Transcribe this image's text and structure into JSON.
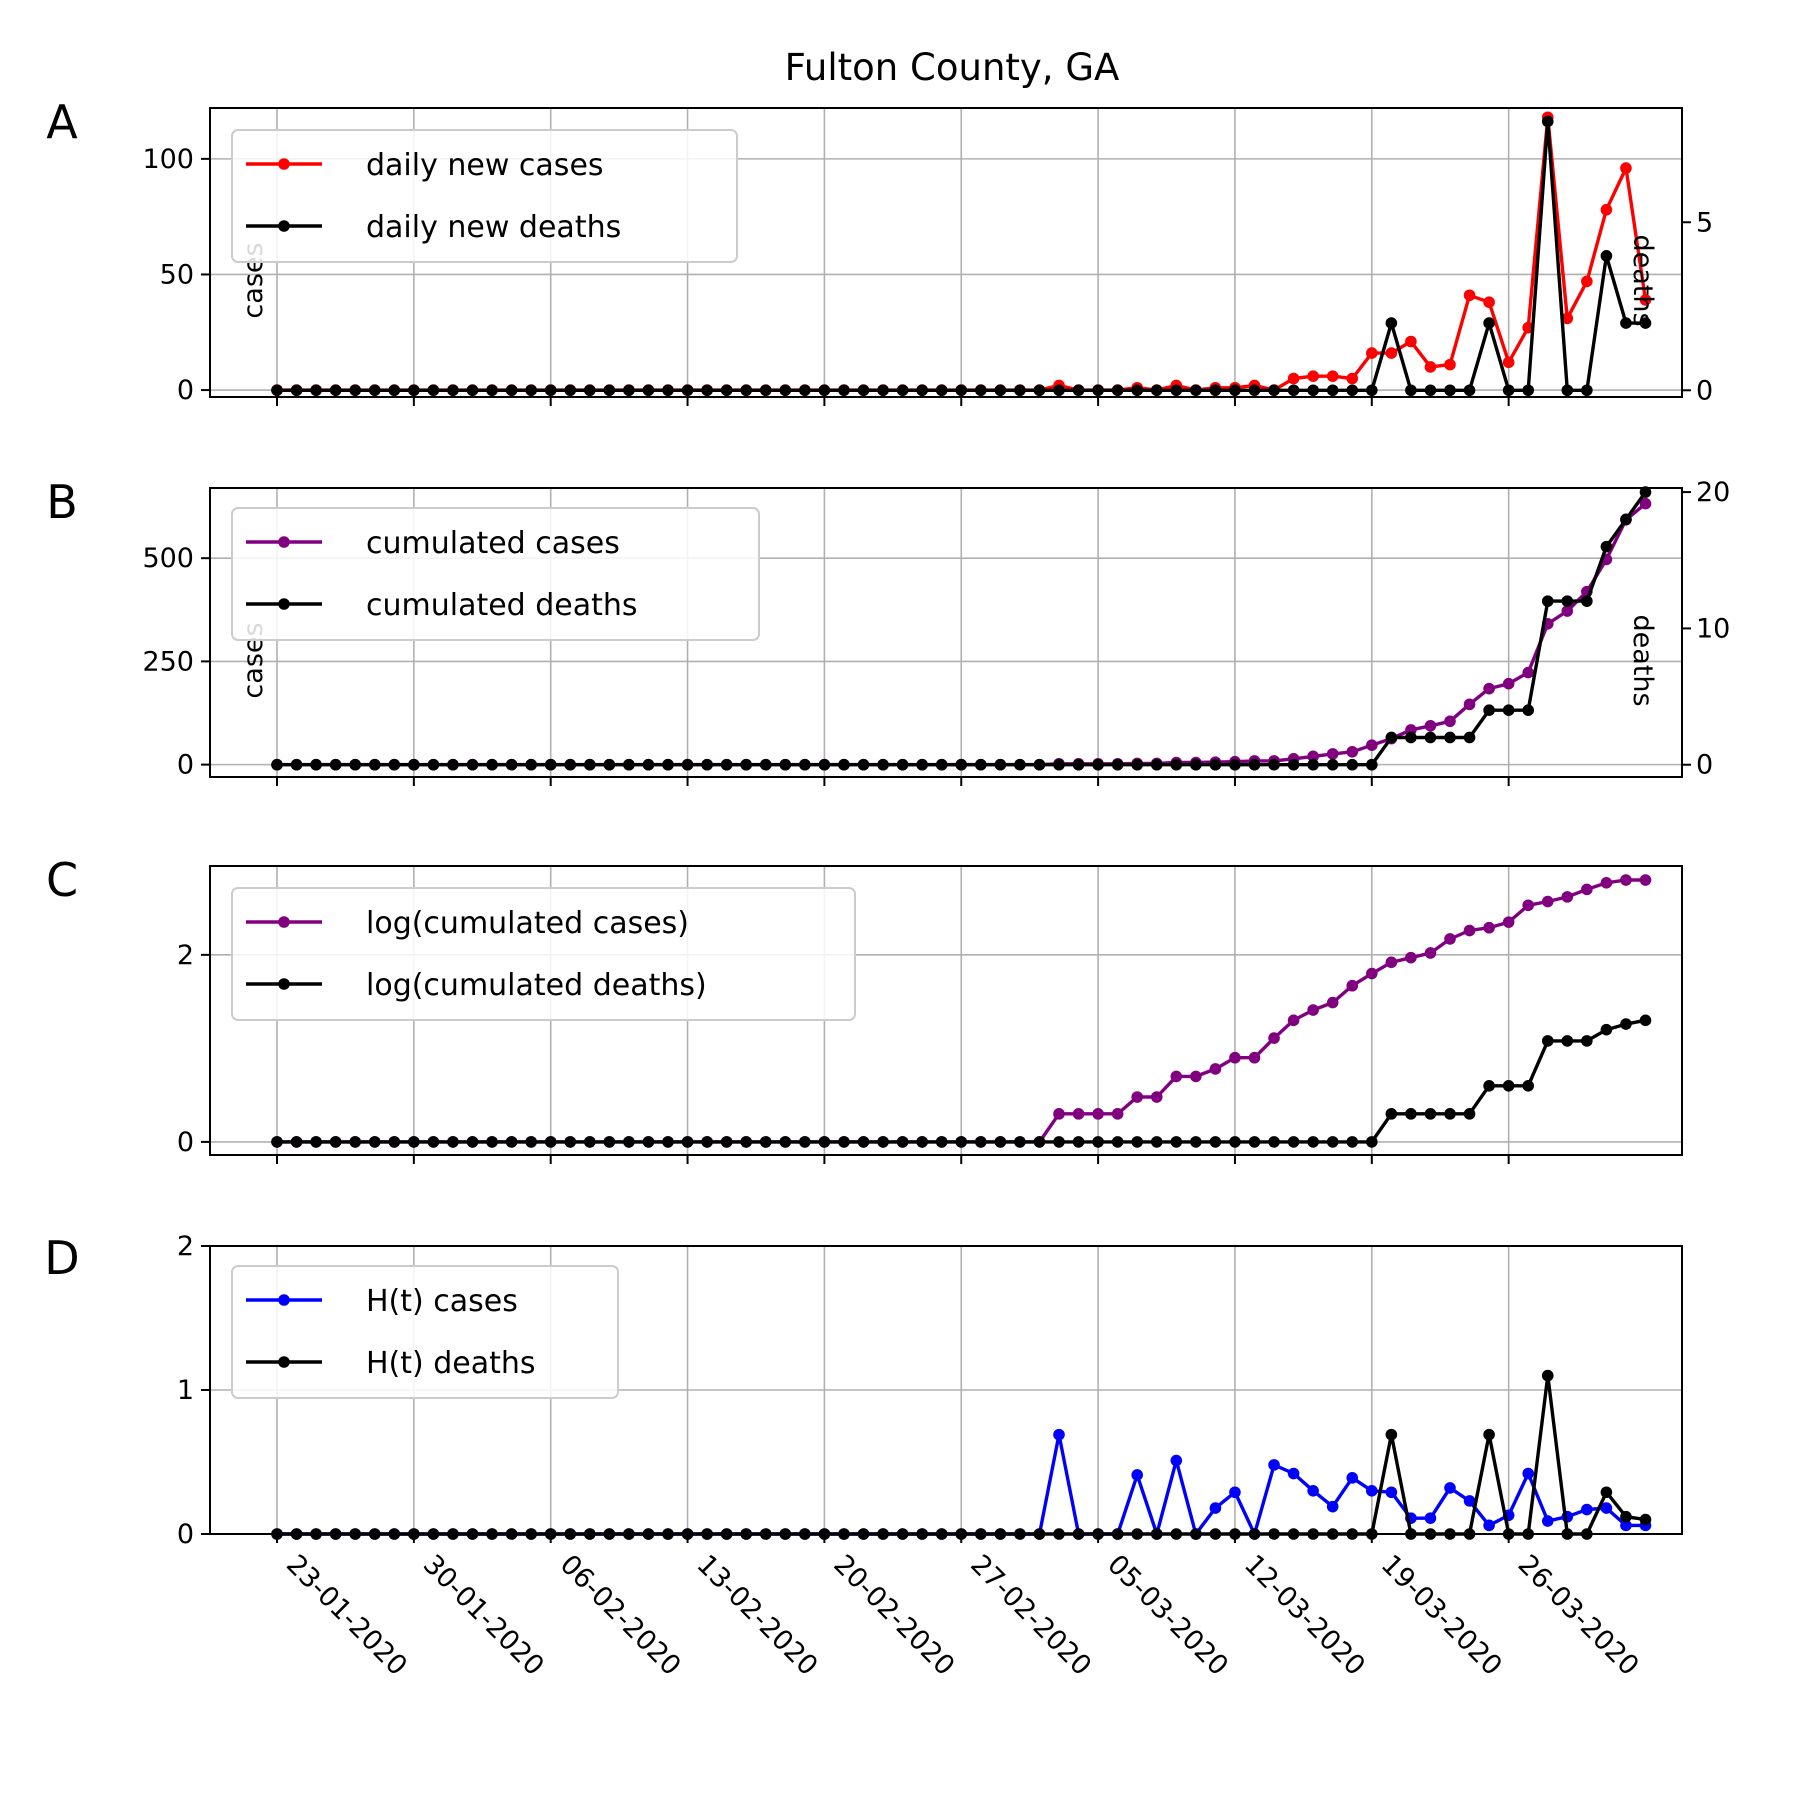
{
  "title": "Fulton County, GA",
  "x_tick_labels": [
    "23-01-2020",
    "30-01-2020",
    "06-02-2020",
    "13-02-2020",
    "20-02-2020",
    "27-02-2020",
    "05-03-2020",
    "12-03-2020",
    "19-03-2020",
    "26-03-2020"
  ],
  "chart_data": [
    {
      "panel": "A",
      "type": "line",
      "x": {
        "start": "2020-01-23",
        "end": "2020-04-01",
        "unit": "day"
      },
      "ylabel": "cases",
      "ylabel_right": "deaths",
      "ylim": [
        -3,
        122
      ],
      "yticks": [
        0,
        50,
        100
      ],
      "ylim_right": [
        -0.2,
        8.4
      ],
      "yticks_right": [
        0,
        5
      ],
      "grid": true,
      "legend": "upper-left",
      "series": [
        {
          "name": "daily new cases",
          "axis": "left",
          "color": "#ff0000",
          "values": [
            0,
            0,
            0,
            0,
            0,
            0,
            0,
            0,
            0,
            0,
            0,
            0,
            0,
            0,
            0,
            0,
            0,
            0,
            0,
            0,
            0,
            0,
            0,
            0,
            0,
            0,
            0,
            0,
            0,
            0,
            0,
            0,
            0,
            0,
            0,
            0,
            0,
            0,
            0,
            0,
            2,
            0,
            0,
            0,
            1,
            0,
            2,
            0,
            1,
            1,
            2,
            0,
            5,
            6,
            6,
            5,
            16,
            16,
            21,
            10,
            11,
            41,
            38,
            12,
            27,
            118,
            31,
            47,
            78,
            96,
            39
          ]
        },
        {
          "name": "daily new deaths",
          "axis": "right",
          "color": "#000000",
          "values": [
            0,
            0,
            0,
            0,
            0,
            0,
            0,
            0,
            0,
            0,
            0,
            0,
            0,
            0,
            0,
            0,
            0,
            0,
            0,
            0,
            0,
            0,
            0,
            0,
            0,
            0,
            0,
            0,
            0,
            0,
            0,
            0,
            0,
            0,
            0,
            0,
            0,
            0,
            0,
            0,
            0,
            0,
            0,
            0,
            0,
            0,
            0,
            0,
            0,
            0,
            0,
            0,
            0,
            0,
            0,
            0,
            0,
            2,
            0,
            0,
            0,
            0,
            2,
            0,
            0,
            8,
            0,
            0,
            4,
            2,
            2
          ]
        }
      ]
    },
    {
      "panel": "B",
      "type": "line",
      "x": {
        "start": "2020-01-23",
        "end": "2020-04-01",
        "unit": "day"
      },
      "ylabel": "cases",
      "ylabel_right": "deaths",
      "ylim": [
        -30,
        670
      ],
      "yticks": [
        0,
        250,
        500
      ],
      "ylim_right": [
        -0.9,
        20.3
      ],
      "yticks_right": [
        0,
        10,
        20
      ],
      "grid": true,
      "legend": "upper-left",
      "series": [
        {
          "name": "cumulated cases",
          "axis": "left",
          "color": "#800080",
          "values": [
            0,
            0,
            0,
            0,
            0,
            0,
            0,
            0,
            0,
            0,
            0,
            0,
            0,
            0,
            0,
            0,
            0,
            0,
            0,
            0,
            0,
            0,
            0,
            0,
            0,
            0,
            0,
            0,
            0,
            0,
            0,
            0,
            0,
            0,
            0,
            0,
            0,
            0,
            0,
            0,
            2,
            2,
            2,
            2,
            3,
            3,
            5,
            5,
            6,
            7,
            9,
            9,
            14,
            20,
            26,
            31,
            47,
            63,
            84,
            94,
            105,
            146,
            184,
            196,
            223,
            341,
            372,
            419,
            497,
            593,
            632
          ]
        },
        {
          "name": "cumulated deaths",
          "axis": "right",
          "color": "#000000",
          "values": [
            0,
            0,
            0,
            0,
            0,
            0,
            0,
            0,
            0,
            0,
            0,
            0,
            0,
            0,
            0,
            0,
            0,
            0,
            0,
            0,
            0,
            0,
            0,
            0,
            0,
            0,
            0,
            0,
            0,
            0,
            0,
            0,
            0,
            0,
            0,
            0,
            0,
            0,
            0,
            0,
            0,
            0,
            0,
            0,
            0,
            0,
            0,
            0,
            0,
            0,
            0,
            0,
            0,
            0,
            0,
            0,
            0,
            2,
            2,
            2,
            2,
            2,
            4,
            4,
            4,
            12,
            12,
            12,
            16,
            18,
            20
          ]
        }
      ]
    },
    {
      "panel": "C",
      "type": "line",
      "x": {
        "start": "2020-01-23",
        "end": "2020-04-01",
        "unit": "day"
      },
      "ylim": [
        -0.14,
        2.95
      ],
      "yticks": [
        0,
        2
      ],
      "grid": true,
      "legend": "upper-left",
      "series": [
        {
          "name": "log(cumulated cases)",
          "color": "#800080",
          "values": [
            0,
            0,
            0,
            0,
            0,
            0,
            0,
            0,
            0,
            0,
            0,
            0,
            0,
            0,
            0,
            0,
            0,
            0,
            0,
            0,
            0,
            0,
            0,
            0,
            0,
            0,
            0,
            0,
            0,
            0,
            0,
            0,
            0,
            0,
            0,
            0,
            0,
            0,
            0,
            0,
            0.3,
            0.3,
            0.3,
            0.3,
            0.48,
            0.48,
            0.7,
            0.7,
            0.78,
            0.9,
            0.9,
            1.11,
            1.3,
            1.41,
            1.49,
            1.67,
            1.8,
            1.92,
            1.97,
            2.02,
            2.17,
            2.26,
            2.29,
            2.35,
            2.53,
            2.57,
            2.62,
            2.7,
            2.77,
            2.8,
            2.8
          ]
        },
        {
          "name": "log(cumulated deaths)",
          "color": "#000000",
          "values": [
            0,
            0,
            0,
            0,
            0,
            0,
            0,
            0,
            0,
            0,
            0,
            0,
            0,
            0,
            0,
            0,
            0,
            0,
            0,
            0,
            0,
            0,
            0,
            0,
            0,
            0,
            0,
            0,
            0,
            0,
            0,
            0,
            0,
            0,
            0,
            0,
            0,
            0,
            0,
            0,
            0,
            0,
            0,
            0,
            0,
            0,
            0,
            0,
            0,
            0,
            0,
            0,
            0,
            0,
            0,
            0,
            0,
            0.3,
            0.3,
            0.3,
            0.3,
            0.3,
            0.6,
            0.6,
            0.6,
            1.08,
            1.08,
            1.08,
            1.2,
            1.26,
            1.3
          ]
        }
      ]
    },
    {
      "panel": "D",
      "type": "line",
      "x": {
        "start": "2020-01-23",
        "end": "2020-04-01",
        "unit": "day"
      },
      "ylim": [
        0,
        2
      ],
      "yticks": [
        0,
        1,
        2
      ],
      "grid": true,
      "legend": "upper-left",
      "series": [
        {
          "name": "H(t) cases",
          "color": "#0000ff",
          "values": [
            0,
            0,
            0,
            0,
            0,
            0,
            0,
            0,
            0,
            0,
            0,
            0,
            0,
            0,
            0,
            0,
            0,
            0,
            0,
            0,
            0,
            0,
            0,
            0,
            0,
            0,
            0,
            0,
            0,
            0,
            0,
            0,
            0,
            0,
            0,
            0,
            0,
            0,
            0,
            0,
            0.69,
            0,
            0,
            0,
            0.41,
            0,
            0.51,
            0,
            0.18,
            0.29,
            0,
            0.48,
            0.42,
            0.3,
            0.19,
            0.39,
            0.3,
            0.29,
            0.11,
            0.11,
            0.32,
            0.23,
            0.06,
            0.13,
            0.42,
            0.09,
            0.12,
            0.17,
            0.18,
            0.06,
            0.06
          ]
        },
        {
          "name": "H(t) deaths",
          "color": "#000000",
          "values": [
            0,
            0,
            0,
            0,
            0,
            0,
            0,
            0,
            0,
            0,
            0,
            0,
            0,
            0,
            0,
            0,
            0,
            0,
            0,
            0,
            0,
            0,
            0,
            0,
            0,
            0,
            0,
            0,
            0,
            0,
            0,
            0,
            0,
            0,
            0,
            0,
            0,
            0,
            0,
            0,
            0,
            0,
            0,
            0,
            0,
            0,
            0,
            0,
            0,
            0,
            0,
            0,
            0,
            0,
            0,
            0,
            0,
            0.69,
            0,
            0,
            0,
            0,
            0.69,
            0,
            0,
            1.1,
            0,
            0,
            0.29,
            0.12,
            0.1
          ]
        }
      ]
    }
  ]
}
